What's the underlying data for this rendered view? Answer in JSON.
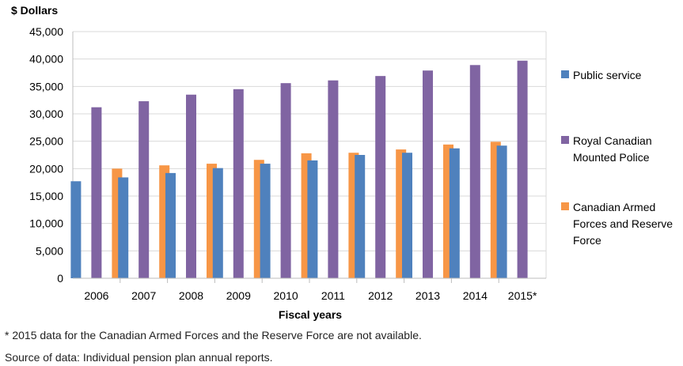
{
  "chart_data": {
    "type": "bar",
    "ylabel": "$ Dollars",
    "xlabel": "Fiscal years",
    "ylim": [
      0,
      45000
    ],
    "ytick_step": 5000,
    "y_tick_labels": [
      "0",
      "5,000",
      "10,000",
      "15,000",
      "20,000",
      "25,000",
      "30,000",
      "35,000",
      "40,000",
      "45,000"
    ],
    "categories": [
      "2006",
      "2007",
      "2008",
      "2009",
      "2010",
      "2011",
      "2012",
      "2013",
      "2014",
      "2015*"
    ],
    "grid": true,
    "legend_position": "right",
    "series": [
      {
        "name": "Public service",
        "color": "#4f81bd",
        "values": [
          17700,
          18400,
          19200,
          20100,
          20900,
          21500,
          22500,
          22900,
          23700,
          24200
        ]
      },
      {
        "name": "Royal Canadian Mounted Police",
        "legend_lines": [
          "Royal Canadian",
          "Mounted Police"
        ],
        "color": "#8064a2",
        "values": [
          31200,
          32300,
          33500,
          34500,
          35600,
          36100,
          36900,
          37900,
          38900,
          39700
        ]
      },
      {
        "name": "Canadian Armed Forces and Reserve Force",
        "legend_lines": [
          "Canadian Armed",
          "Forces and Reserve",
          "Force"
        ],
        "color": "#f79646",
        "values": [
          20000,
          20600,
          20900,
          21600,
          22800,
          22900,
          23500,
          24400,
          24900,
          null
        ]
      }
    ]
  },
  "footnote": "* 2015 data for the Canadian Armed Forces and the Reserve Force are not available.",
  "source": "Source of data: Individual pension plan annual reports."
}
